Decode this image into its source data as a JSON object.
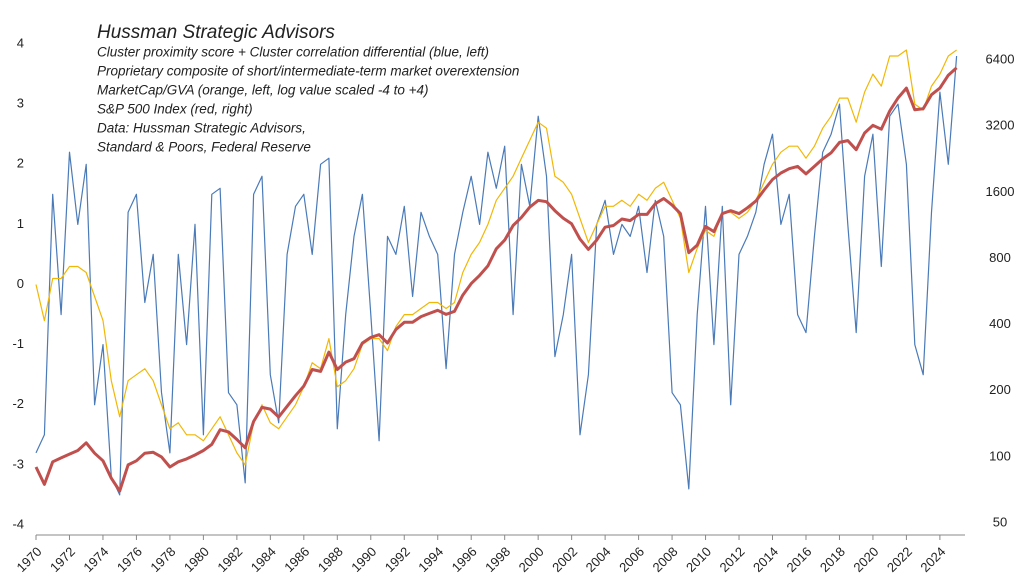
{
  "chart_data": {
    "type": "line",
    "title": "Hussman Strategic Advisors",
    "annotations": [
      "Cluster proximity score + Cluster correlation differential (blue, left)",
      "Proprietary composite of short/intermediate-term  market overextension",
      "MarketCap/GVA (orange, left, log value scaled -4 to +4)",
      "S&P 500 Index (red, right)",
      "Data: Hussman Strategic Advisors,",
      "Standard & Poors, Federal Reserve"
    ],
    "x": [
      1970,
      1970.5,
      1971,
      1971.5,
      1972,
      1972.5,
      1973,
      1973.5,
      1974,
      1974.5,
      1975,
      1975.5,
      1976,
      1976.5,
      1977,
      1977.5,
      1978,
      1978.5,
      1979,
      1979.5,
      1980,
      1980.5,
      1981,
      1981.5,
      1982,
      1982.5,
      1983,
      1983.5,
      1984,
      1984.5,
      1985,
      1985.5,
      1986,
      1986.5,
      1987,
      1987.5,
      1988,
      1988.5,
      1989,
      1989.5,
      1990,
      1990.5,
      1991,
      1991.5,
      1992,
      1992.5,
      1993,
      1993.5,
      1994,
      1994.5,
      1995,
      1995.5,
      1996,
      1996.5,
      1997,
      1997.5,
      1998,
      1998.5,
      1999,
      1999.5,
      2000,
      2000.5,
      2001,
      2001.5,
      2002,
      2002.5,
      2003,
      2003.5,
      2004,
      2004.5,
      2005,
      2005.5,
      2006,
      2006.5,
      2007,
      2007.5,
      2008,
      2008.5,
      2009,
      2009.5,
      2010,
      2010.5,
      2011,
      2011.5,
      2012,
      2012.5,
      2013,
      2013.5,
      2014,
      2014.5,
      2015,
      2015.5,
      2016,
      2016.5,
      2017,
      2017.5,
      2018,
      2018.5,
      2019,
      2019.5,
      2020,
      2020.5,
      2021,
      2021.5,
      2022,
      2022.5,
      2023,
      2023.5,
      2024,
      2024.5,
      2025
    ],
    "series": [
      {
        "color": "#4a7ab8",
        "axis": "y",
        "values": [
          -2.8,
          -2.5,
          1.5,
          -0.5,
          2.2,
          1.0,
          2.0,
          -2.0,
          -1.0,
          -3.2,
          -3.5,
          1.2,
          1.5,
          -0.3,
          0.5,
          -1.8,
          -2.8,
          0.5,
          -1.0,
          1.0,
          -2.5,
          1.5,
          1.6,
          -1.8,
          -2.0,
          -3.3,
          1.5,
          1.8,
          -1.5,
          -2.3,
          0.5,
          1.3,
          1.5,
          0.5,
          2.0,
          2.1,
          -2.4,
          -0.5,
          0.8,
          1.5,
          -0.5,
          -2.6,
          0.8,
          0.5,
          1.3,
          -0.2,
          1.2,
          0.8,
          0.5,
          -1.4,
          0.5,
          1.2,
          1.8,
          1.0,
          2.2,
          1.6,
          2.3,
          -0.5,
          2.0,
          1.3,
          2.8,
          1.8,
          -1.2,
          -0.5,
          0.5,
          -2.5,
          -1.5,
          1.0,
          1.4,
          0.5,
          1.0,
          0.8,
          1.3,
          0.2,
          1.4,
          0.8,
          -1.8,
          -2.0,
          -3.4,
          -0.5,
          1.3,
          -1.0,
          1.3,
          -2.0,
          0.5,
          0.8,
          1.2,
          2.0,
          2.5,
          1.0,
          1.5,
          -0.5,
          -0.8,
          0.8,
          2.2,
          2.5,
          3.0,
          1.0,
          -0.8,
          1.8,
          2.5,
          0.3,
          2.8,
          3.0,
          2.0,
          -1.0,
          -1.5,
          1.2,
          3.2,
          2.0,
          3.8
        ]
      },
      {
        "color": "#f2b705",
        "axis": "y",
        "values": [
          0.0,
          -0.6,
          0.1,
          0.1,
          0.3,
          0.3,
          0.2,
          -0.2,
          -0.6,
          -1.6,
          -2.2,
          -1.6,
          -1.5,
          -1.4,
          -1.6,
          -2.0,
          -2.4,
          -2.3,
          -2.5,
          -2.5,
          -2.6,
          -2.4,
          -2.2,
          -2.5,
          -2.8,
          -3.0,
          -2.3,
          -2.0,
          -2.3,
          -2.4,
          -2.2,
          -2.0,
          -1.7,
          -1.3,
          -1.4,
          -0.9,
          -1.7,
          -1.6,
          -1.4,
          -1.0,
          -0.9,
          -0.9,
          -1.1,
          -0.7,
          -0.5,
          -0.5,
          -0.4,
          -0.3,
          -0.3,
          -0.4,
          -0.3,
          0.2,
          0.5,
          0.7,
          1.0,
          1.4,
          1.6,
          1.8,
          2.1,
          2.4,
          2.7,
          2.6,
          1.8,
          1.7,
          1.5,
          1.1,
          0.7,
          1.0,
          1.3,
          1.3,
          1.4,
          1.3,
          1.5,
          1.4,
          1.6,
          1.7,
          1.4,
          1.1,
          0.2,
          0.6,
          0.9,
          0.8,
          1.2,
          1.2,
          1.1,
          1.2,
          1.4,
          1.7,
          2.0,
          2.2,
          2.3,
          2.3,
          2.1,
          2.3,
          2.6,
          2.8,
          3.1,
          3.1,
          2.7,
          3.2,
          3.5,
          3.3,
          3.8,
          3.8,
          3.9,
          3.0,
          2.9,
          3.3,
          3.5,
          3.8,
          3.9
        ]
      },
      {
        "color": "#c0504d",
        "axis": "y2",
        "values": [
          90,
          75,
          95,
          99,
          103,
          107,
          116,
          104,
          96,
          80,
          70,
          92,
          96,
          104,
          105,
          100,
          90,
          95,
          98,
          102,
          107,
          114,
          133,
          130,
          120,
          110,
          145,
          168,
          165,
          152,
          170,
          190,
          210,
          250,
          245,
          300,
          250,
          270,
          280,
          330,
          350,
          360,
          330,
          380,
          410,
          410,
          435,
          450,
          465,
          445,
          460,
          545,
          615,
          670,
          740,
          885,
          970,
          1130,
          1230,
          1370,
          1470,
          1450,
          1320,
          1220,
          1150,
          980,
          880,
          970,
          1110,
          1130,
          1210,
          1190,
          1270,
          1270,
          1420,
          1500,
          1400,
          1280,
          850,
          920,
          1120,
          1060,
          1280,
          1320,
          1280,
          1360,
          1460,
          1640,
          1830,
          1960,
          2050,
          2100,
          1940,
          2100,
          2270,
          2420,
          2700,
          2750,
          2500,
          2980,
          3230,
          3100,
          3750,
          4300,
          4770,
          3800,
          3840,
          4450,
          4770,
          5460,
          5900
        ]
      }
    ],
    "xlim": [
      1970,
      2025.5
    ],
    "xticks": [
      1970,
      1972,
      1974,
      1976,
      1978,
      1980,
      1982,
      1984,
      1986,
      1988,
      1990,
      1992,
      1994,
      1996,
      1998,
      2000,
      2002,
      2004,
      2006,
      2008,
      2010,
      2012,
      2014,
      2016,
      2018,
      2020,
      2022,
      2024
    ],
    "ylim": [
      -4,
      4
    ],
    "yticks": [
      -4,
      -3,
      -2,
      -1,
      0,
      1,
      2,
      3,
      4
    ],
    "y2lim": [
      49,
      7570
    ],
    "y2ticks": [
      50,
      100,
      200,
      400,
      800,
      1600,
      3200,
      6400
    ],
    "y2log": true,
    "grid": false
  }
}
